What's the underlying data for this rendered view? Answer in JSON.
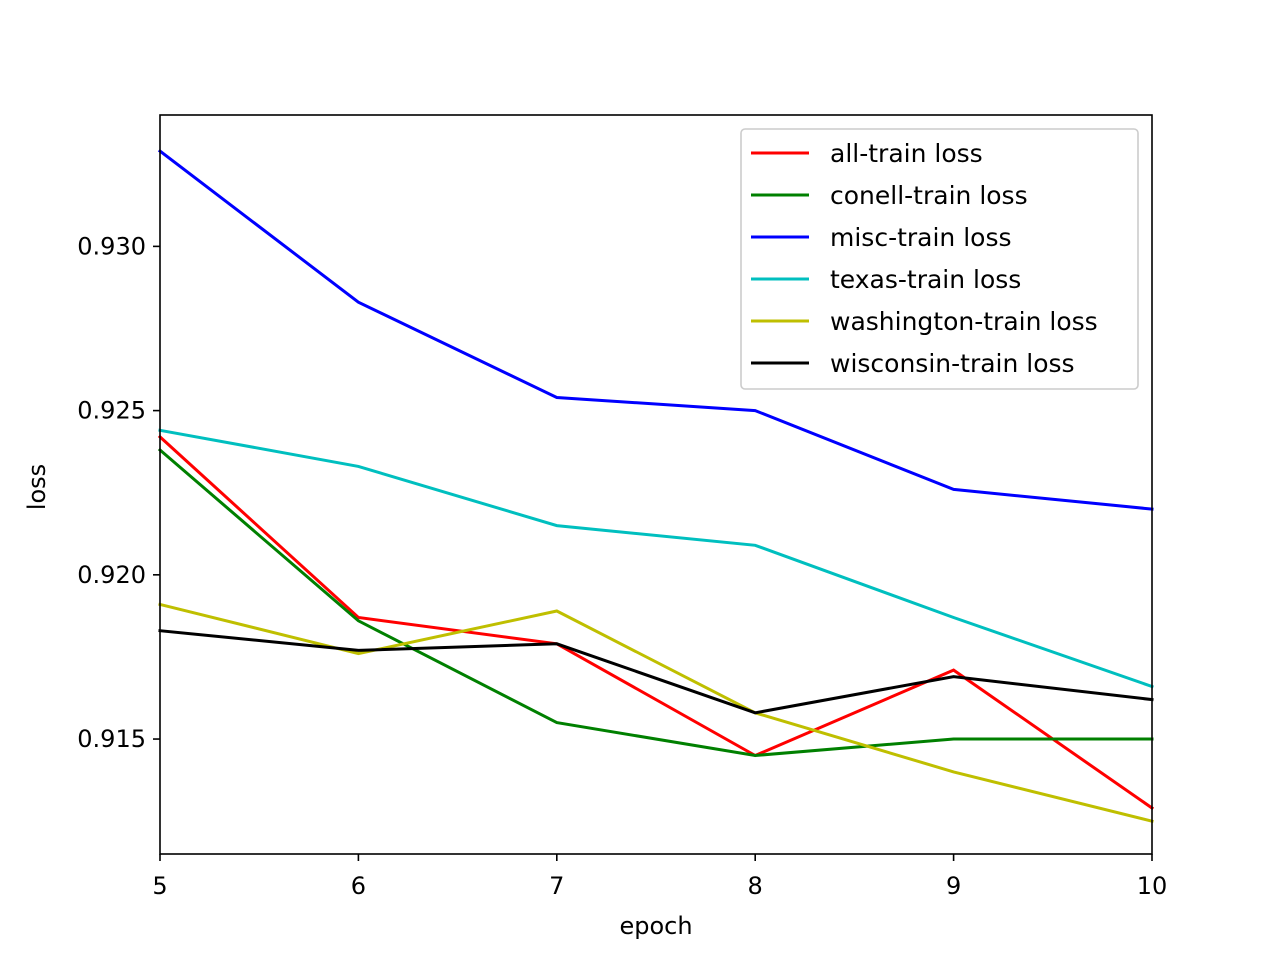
{
  "chart_data": {
    "type": "line",
    "title": "",
    "xlabel": "epoch",
    "ylabel": "loss",
    "xlim": [
      5,
      10
    ],
    "ylim": [
      0.9115,
      0.934
    ],
    "x": [
      5,
      6,
      7,
      8,
      9,
      10
    ],
    "x_ticks": [
      "5",
      "6",
      "7",
      "8",
      "9",
      "10"
    ],
    "y_ticks": [
      0.915,
      0.92,
      0.925,
      0.93
    ],
    "y_tick_labels": [
      "0.915",
      "0.920",
      "0.925",
      "0.930"
    ],
    "grid": false,
    "legend_position": "top-right",
    "series": [
      {
        "name": "all-train loss",
        "color": "#ff0000",
        "values": [
          0.9242,
          0.9187,
          0.9179,
          0.9145,
          0.9171,
          0.9129
        ]
      },
      {
        "name": "conell-train loss",
        "color": "#008000",
        "values": [
          0.9238,
          0.9186,
          0.9155,
          0.9145,
          0.915,
          0.915
        ]
      },
      {
        "name": "misc-train loss",
        "color": "#0000ff",
        "values": [
          0.9329,
          0.9283,
          0.9254,
          0.925,
          0.9226,
          0.922
        ]
      },
      {
        "name": "texas-train loss",
        "color": "#00bfbf",
        "values": [
          0.9244,
          0.9233,
          0.9215,
          0.9209,
          0.9187,
          0.9166
        ]
      },
      {
        "name": "washington-train loss",
        "color": "#bfbf00",
        "values": [
          0.9191,
          0.9176,
          0.9189,
          0.9158,
          0.914,
          0.9125
        ]
      },
      {
        "name": "wisconsin-train loss",
        "color": "#000000",
        "values": [
          0.9183,
          0.9177,
          0.9179,
          0.9158,
          0.9169,
          0.9162
        ]
      }
    ]
  }
}
